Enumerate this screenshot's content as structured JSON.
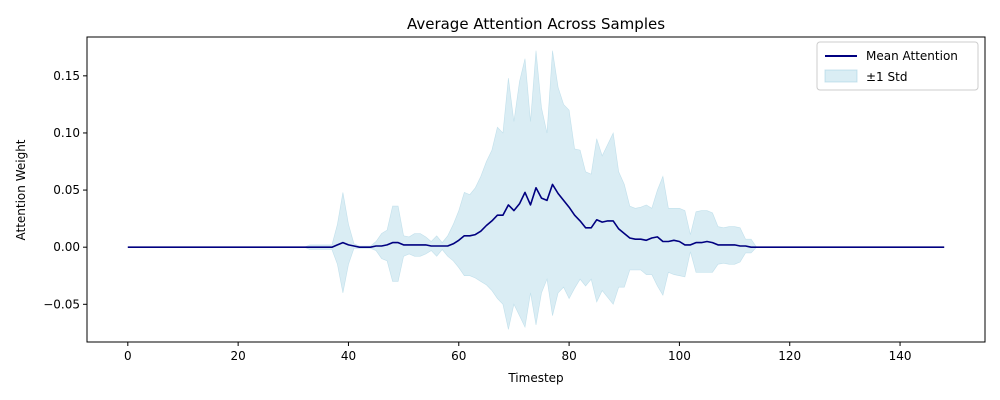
{
  "chart_data": {
    "type": "area",
    "title": "Average Attention Across Samples",
    "xlabel": "Timestep",
    "ylabel": "Attention Weight",
    "xlim": [
      -7.4,
      155.4
    ],
    "ylim": [
      -0.083,
      0.184
    ],
    "xticks": [
      0,
      20,
      40,
      60,
      80,
      100,
      120,
      140
    ],
    "yticks": [
      -0.05,
      0.0,
      0.05,
      0.1,
      0.15
    ],
    "ytick_labels": [
      "−0.05",
      "0.00",
      "0.05",
      "0.10",
      "0.15"
    ],
    "grid": false,
    "legend_position": "top-right",
    "colors": {
      "mean": "#000080",
      "band": "#add8e6",
      "band_edge": "#9ccde0"
    },
    "series": [
      {
        "name": "Mean Attention",
        "x": [
          0,
          32,
          33,
          34,
          35,
          36,
          37,
          38,
          39,
          40,
          41,
          42,
          43,
          44,
          45,
          46,
          47,
          48,
          49,
          50,
          51,
          52,
          53,
          54,
          55,
          56,
          57,
          58,
          59,
          60,
          61,
          62,
          63,
          64,
          65,
          66,
          67,
          68,
          69,
          70,
          71,
          72,
          73,
          74,
          75,
          76,
          77,
          78,
          79,
          80,
          81,
          82,
          83,
          84,
          85,
          86,
          87,
          88,
          89,
          90,
          91,
          92,
          93,
          94,
          95,
          96,
          97,
          98,
          99,
          100,
          101,
          102,
          103,
          104,
          105,
          106,
          107,
          108,
          109,
          110,
          111,
          112,
          113,
          114,
          148
        ],
        "y": [
          0,
          0,
          0,
          0,
          0,
          0,
          0,
          0.002,
          0.004,
          0.002,
          0.001,
          0,
          0,
          0,
          0.001,
          0.001,
          0.002,
          0.004,
          0.004,
          0.002,
          0.002,
          0.002,
          0.002,
          0.002,
          0.001,
          0.001,
          0.001,
          0.001,
          0.003,
          0.006,
          0.01,
          0.01,
          0.011,
          0.014,
          0.019,
          0.023,
          0.028,
          0.028,
          0.037,
          0.032,
          0.038,
          0.048,
          0.037,
          0.052,
          0.043,
          0.041,
          0.055,
          0.047,
          0.041,
          0.035,
          0.028,
          0.023,
          0.017,
          0.017,
          0.024,
          0.022,
          0.023,
          0.023,
          0.016,
          0.012,
          0.008,
          0.007,
          0.007,
          0.006,
          0.008,
          0.009,
          0.005,
          0.005,
          0.006,
          0.005,
          0.002,
          0.002,
          0.004,
          0.004,
          0.005,
          0.004,
          0.002,
          0.002,
          0.002,
          0.002,
          0.001,
          0.001,
          0,
          0,
          0
        ]
      },
      {
        "name": "±1 Std",
        "x": [
          0,
          32,
          33,
          34,
          35,
          36,
          37,
          38,
          39,
          40,
          41,
          42,
          43,
          44,
          45,
          46,
          47,
          48,
          49,
          50,
          51,
          52,
          53,
          54,
          55,
          56,
          57,
          58,
          59,
          60,
          61,
          62,
          63,
          64,
          65,
          66,
          67,
          68,
          69,
          70,
          71,
          72,
          73,
          74,
          75,
          76,
          77,
          78,
          79,
          80,
          81,
          82,
          83,
          84,
          85,
          86,
          87,
          88,
          89,
          90,
          91,
          92,
          93,
          94,
          95,
          96,
          97,
          98,
          99,
          100,
          101,
          102,
          103,
          104,
          105,
          106,
          107,
          108,
          109,
          110,
          111,
          112,
          113,
          114,
          148
        ],
        "upper": [
          0,
          0,
          0.002,
          0.002,
          0.002,
          0.002,
          0.002,
          0.02,
          0.048,
          0.02,
          0.003,
          0.001,
          0.001,
          0.001,
          0.005,
          0.012,
          0.015,
          0.036,
          0.036,
          0.01,
          0.009,
          0.012,
          0.012,
          0.009,
          0.005,
          0.01,
          0.004,
          0.01,
          0.02,
          0.032,
          0.048,
          0.046,
          0.052,
          0.062,
          0.075,
          0.085,
          0.105,
          0.1,
          0.148,
          0.11,
          0.145,
          0.165,
          0.11,
          0.172,
          0.122,
          0.1,
          0.172,
          0.14,
          0.125,
          0.12,
          0.086,
          0.085,
          0.066,
          0.064,
          0.095,
          0.08,
          0.09,
          0.1,
          0.066,
          0.055,
          0.036,
          0.034,
          0.035,
          0.037,
          0.034,
          0.05,
          0.062,
          0.034,
          0.034,
          0.034,
          0.032,
          0.011,
          0.031,
          0.032,
          0.032,
          0.03,
          0.018,
          0.017,
          0.018,
          0.018,
          0.017,
          0.007,
          0.007,
          0,
          0
        ],
        "lower": [
          0,
          0,
          -0.002,
          -0.002,
          -0.002,
          -0.002,
          -0.002,
          -0.015,
          -0.04,
          -0.015,
          -0.001,
          -0.001,
          -0.001,
          -0.001,
          -0.003,
          -0.01,
          -0.012,
          -0.03,
          -0.03,
          -0.008,
          -0.006,
          -0.008,
          -0.008,
          -0.006,
          -0.003,
          -0.008,
          -0.002,
          -0.008,
          -0.012,
          -0.018,
          -0.025,
          -0.025,
          -0.027,
          -0.03,
          -0.033,
          -0.038,
          -0.045,
          -0.05,
          -0.072,
          -0.05,
          -0.06,
          -0.07,
          -0.04,
          -0.068,
          -0.04,
          -0.028,
          -0.06,
          -0.04,
          -0.035,
          -0.045,
          -0.036,
          -0.028,
          -0.034,
          -0.028,
          -0.048,
          -0.038,
          -0.044,
          -0.05,
          -0.035,
          -0.035,
          -0.02,
          -0.02,
          -0.02,
          -0.024,
          -0.024,
          -0.034,
          -0.042,
          -0.022,
          -0.024,
          -0.025,
          -0.026,
          -0.004,
          -0.022,
          -0.022,
          -0.022,
          -0.022,
          -0.015,
          -0.014,
          -0.015,
          -0.015,
          -0.013,
          -0.005,
          -0.005,
          0,
          0
        ]
      }
    ]
  }
}
